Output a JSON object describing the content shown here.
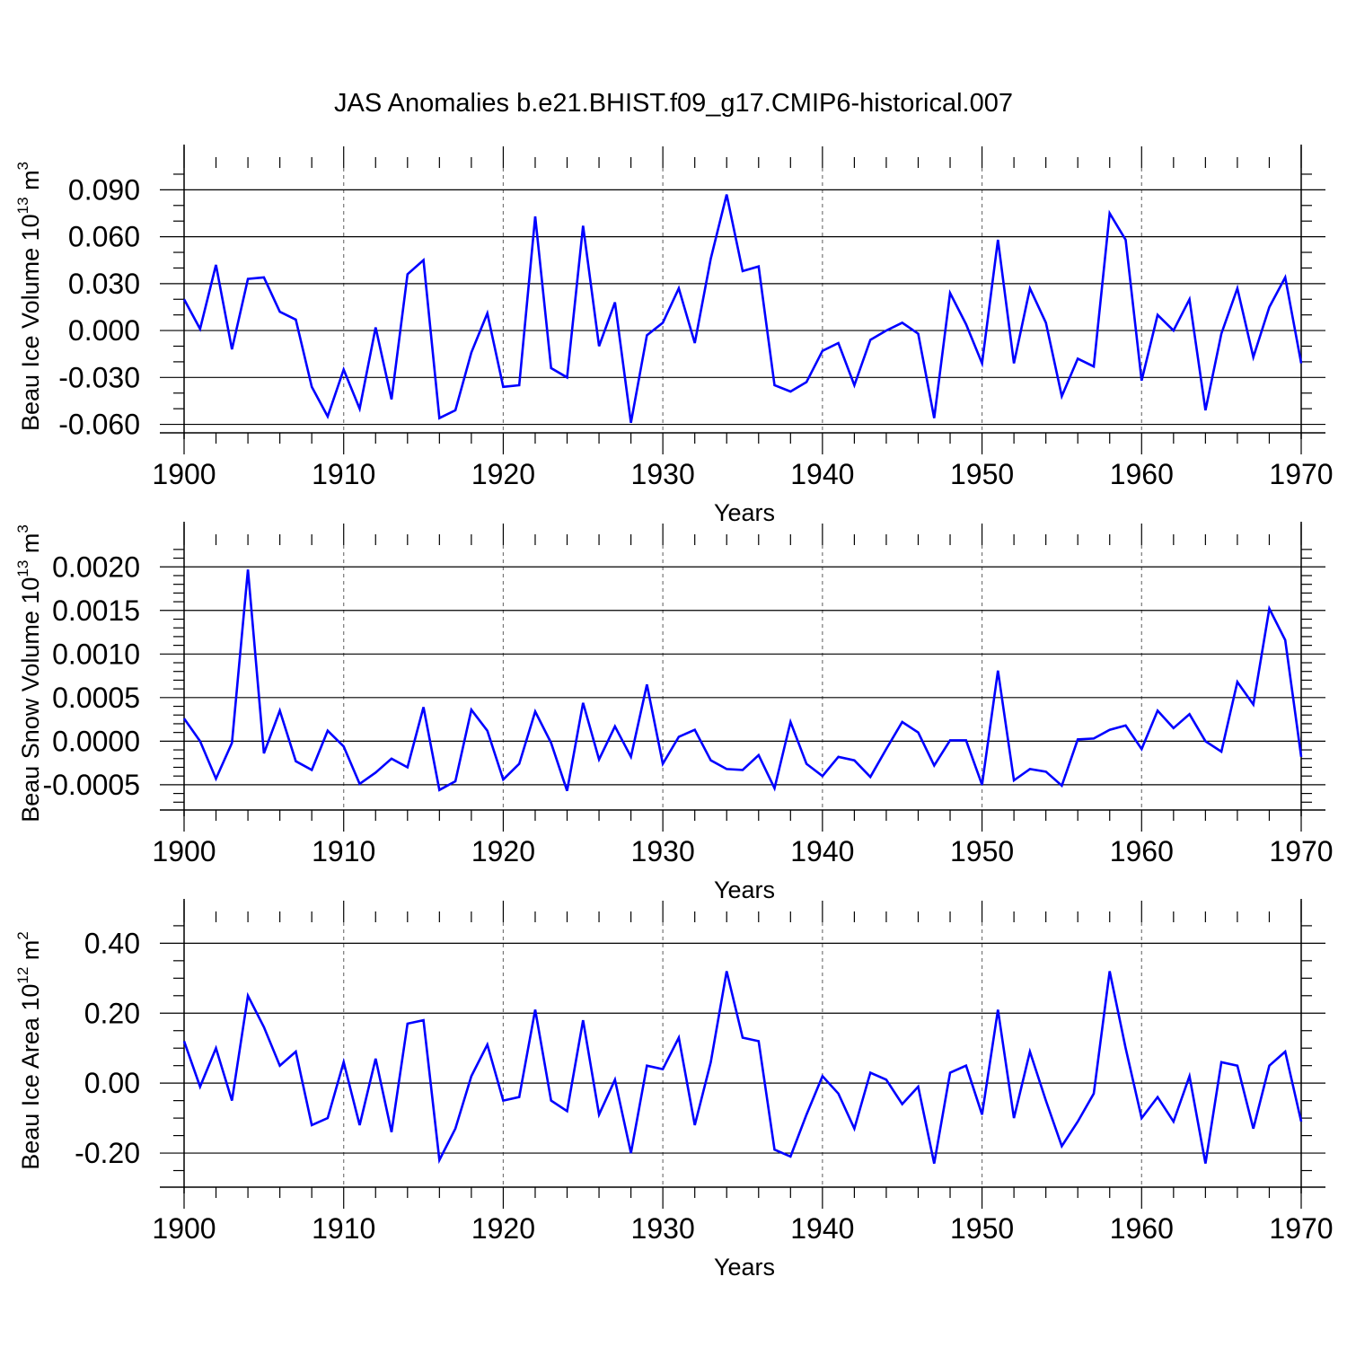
{
  "figure": {
    "title": "JAS Anomalies b.e21.BHIST.f09_g17.CMIP6-historical.007",
    "line_color": "#0000ff"
  },
  "chart_data": [
    {
      "type": "line",
      "id": "ice-volume",
      "ylabel_main": "Beau Ice Volume 10",
      "ylabel_sup": "13",
      "ylabel_unit": " m",
      "ylabel_unit_sup": "3",
      "xlabel": "Years",
      "xlim": [
        1900,
        1970
      ],
      "ylim": [
        -0.066,
        0.104
      ],
      "xticks": [
        1900,
        1910,
        1920,
        1930,
        1940,
        1950,
        1960,
        1970
      ],
      "xtick_labels": [
        "1900",
        "1910",
        "1920",
        "1930",
        "1940",
        "1950",
        "1960",
        "1970"
      ],
      "yticks": [
        -0.06,
        -0.03,
        0.0,
        0.03,
        0.06,
        0.09
      ],
      "ytick_labels": [
        "-0.060",
        "-0.030",
        "0.000",
        "0.030",
        "0.060",
        "0.090"
      ],
      "yminor_step": 0.01,
      "series": [
        {
          "name": "Beau Ice Volume",
          "x_start": 1900,
          "values": [
            0.02,
            0.001,
            0.042,
            -0.012,
            0.033,
            0.034,
            0.012,
            0.007,
            -0.036,
            -0.055,
            -0.025,
            -0.05,
            0.002,
            -0.044,
            0.036,
            0.045,
            -0.056,
            -0.051,
            -0.014,
            0.011,
            -0.036,
            -0.035,
            0.073,
            -0.024,
            -0.03,
            0.067,
            -0.01,
            0.018,
            -0.059,
            -0.003,
            0.005,
            0.027,
            -0.008,
            0.046,
            0.087,
            0.038,
            0.041,
            -0.035,
            -0.039,
            -0.033,
            -0.013,
            -0.008,
            -0.035,
            -0.006,
            0.0,
            0.005,
            -0.002,
            -0.056,
            0.024,
            0.004,
            -0.021,
            0.058,
            -0.021,
            0.027,
            0.005,
            -0.042,
            -0.018,
            -0.023,
            0.075,
            0.058,
            -0.032,
            0.01,
            0.0,
            0.02,
            -0.051,
            -0.002,
            0.027,
            -0.017,
            0.015,
            0.034,
            -0.021
          ]
        }
      ]
    },
    {
      "type": "line",
      "id": "snow-volume",
      "ylabel_main": "Beau Snow Volume 10",
      "ylabel_sup": "13",
      "ylabel_unit": " m",
      "ylabel_unit_sup": "3",
      "xlabel": "Years",
      "xlim": [
        1900,
        1970
      ],
      "ylim": [
        -0.0008,
        0.00225
      ],
      "xticks": [
        1900,
        1910,
        1920,
        1930,
        1940,
        1950,
        1960,
        1970
      ],
      "xtick_labels": [
        "1900",
        "1910",
        "1920",
        "1930",
        "1940",
        "1950",
        "1960",
        "1970"
      ],
      "yticks": [
        -0.0005,
        0.0,
        0.0005,
        0.001,
        0.0015,
        0.002
      ],
      "ytick_labels": [
        "-0.0005",
        "0.0000",
        "0.0005",
        "0.0010",
        "0.0015",
        "0.0020"
      ],
      "yminor_step": 0.0001,
      "series": [
        {
          "name": "Beau Snow Volume",
          "x_start": 1900,
          "values": [
            0.00026,
            0.0,
            -0.00043,
            -2e-05,
            0.00197,
            -0.00014,
            0.00035,
            -0.00023,
            -0.00033,
            0.00012,
            -6e-05,
            -0.00049,
            -0.00036,
            -0.0002,
            -0.0003,
            0.00039,
            -0.00056,
            -0.00046,
            0.00036,
            0.00012,
            -0.00044,
            -0.00026,
            0.00034,
            -2e-05,
            -0.00057,
            0.00044,
            -0.00021,
            0.00017,
            -0.00018,
            0.00065,
            -0.00026,
            5e-05,
            0.00013,
            -0.00022,
            -0.00032,
            -0.00033,
            -0.00016,
            -0.00054,
            0.00022,
            -0.00026,
            -0.0004,
            -0.00018,
            -0.00022,
            -0.00041,
            -9e-05,
            0.00022,
            0.0001,
            -0.00028,
            1e-05,
            1e-05,
            -0.0005,
            0.00081,
            -0.00045,
            -0.00032,
            -0.00035,
            -0.00051,
            2e-05,
            3e-05,
            0.00013,
            0.00018,
            -9e-05,
            0.00035,
            0.00015,
            0.00031,
            0.0,
            -0.00012,
            0.00068,
            0.00042,
            0.00152,
            0.00116,
            -0.00018
          ]
        }
      ]
    },
    {
      "type": "line",
      "id": "ice-area",
      "ylabel_main": "Beau Ice Area 10",
      "ylabel_sup": "12",
      "ylabel_unit": " m",
      "ylabel_unit_sup": "2",
      "xlabel": "Years",
      "xlim": [
        1900,
        1970
      ],
      "ylim": [
        -0.3,
        0.46
      ],
      "xticks": [
        1900,
        1910,
        1920,
        1930,
        1940,
        1950,
        1960,
        1970
      ],
      "xtick_labels": [
        "1900",
        "1910",
        "1920",
        "1930",
        "1940",
        "1950",
        "1960",
        "1970"
      ],
      "yticks": [
        -0.2,
        0.0,
        0.2,
        0.4
      ],
      "ytick_labels": [
        "-0.20",
        "0.00",
        "0.20",
        "0.40"
      ],
      "yminor_step": 0.05,
      "series": [
        {
          "name": "Beau Ice Area",
          "x_start": 1900,
          "values": [
            0.12,
            -0.01,
            0.1,
            -0.05,
            0.25,
            0.16,
            0.05,
            0.09,
            -0.12,
            -0.1,
            0.06,
            -0.12,
            0.07,
            -0.14,
            0.17,
            0.18,
            -0.22,
            -0.13,
            0.02,
            0.11,
            -0.05,
            -0.04,
            0.21,
            -0.05,
            -0.08,
            0.18,
            -0.09,
            0.01,
            -0.2,
            0.05,
            0.04,
            0.13,
            -0.12,
            0.06,
            0.32,
            0.13,
            0.12,
            -0.19,
            -0.21,
            -0.09,
            0.02,
            -0.03,
            -0.13,
            0.03,
            0.01,
            -0.06,
            -0.01,
            -0.23,
            0.03,
            0.05,
            -0.09,
            0.21,
            -0.1,
            0.09,
            -0.05,
            -0.18,
            -0.11,
            -0.03,
            0.32,
            0.1,
            -0.1,
            -0.04,
            -0.11,
            0.02,
            -0.23,
            0.06,
            0.05,
            -0.13,
            0.05,
            0.09,
            -0.11
          ]
        }
      ]
    }
  ]
}
